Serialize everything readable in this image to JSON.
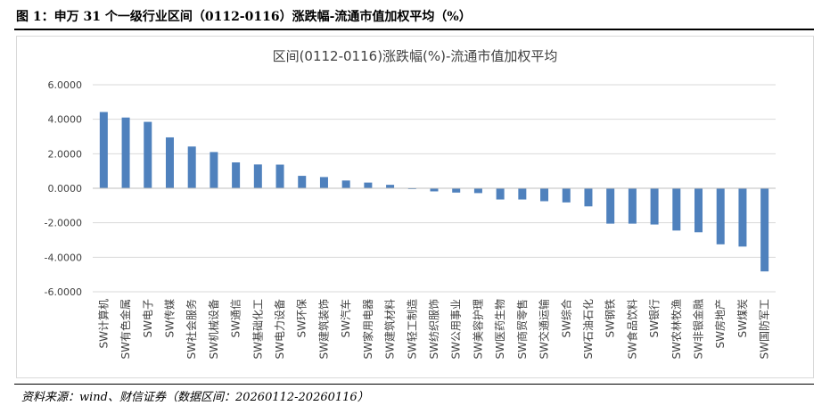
{
  "figure_title": "图 1：申万 31 个一级行业区间（0112-0116）涨跌幅-流通市值加权平均（%）",
  "source_note": "资料来源：wind、财信证券（数据区间：20260112-20260116）",
  "colors": {
    "bar": "#4f81bd",
    "grid": "#d9d9d9",
    "axis": "#bfbfbf",
    "text": "#404040"
  },
  "chart_data": {
    "type": "bar",
    "title": "区间(0112-0116)涨跌幅(%)-流通市值加权平均",
    "xlabel": "",
    "ylabel": "",
    "ylim": [
      -6,
      6
    ],
    "y_ticks": [
      6,
      4,
      2,
      0,
      -2,
      -4,
      -6
    ],
    "y_tick_labels": [
      "6.0000",
      "4.0000",
      "2.0000",
      "0.0000",
      "-2.0000",
      "-4.0000",
      "-6.0000"
    ],
    "grid": true,
    "categories": [
      "SW计算机",
      "SW有色金属",
      "SW电子",
      "SW传媒",
      "SW社会服务",
      "SW机械设备",
      "SW通信",
      "SW基础化工",
      "SW电力设备",
      "SW环保",
      "SW建筑装饰",
      "SW汽车",
      "SW家用电器",
      "SW建筑材料",
      "SW轻工制造",
      "SW纺织服饰",
      "SW公用事业",
      "SW美容护理",
      "SW医药生物",
      "SW商贸零售",
      "SW交通运输",
      "SW综合",
      "SW石油石化",
      "SW钢铁",
      "SW食品饮料",
      "SW银行",
      "SW农林牧渔",
      "SW非银金融",
      "SW房地产",
      "SW煤炭",
      "SW国防军工"
    ],
    "values": [
      4.42,
      4.1,
      3.85,
      2.95,
      2.42,
      2.1,
      1.5,
      1.38,
      1.37,
      0.72,
      0.65,
      0.45,
      0.33,
      0.2,
      -0.05,
      -0.18,
      -0.25,
      -0.28,
      -0.65,
      -0.65,
      -0.75,
      -0.82,
      -1.05,
      -2.05,
      -2.05,
      -2.1,
      -2.45,
      -2.55,
      -3.25,
      -3.38,
      -4.82
    ]
  }
}
